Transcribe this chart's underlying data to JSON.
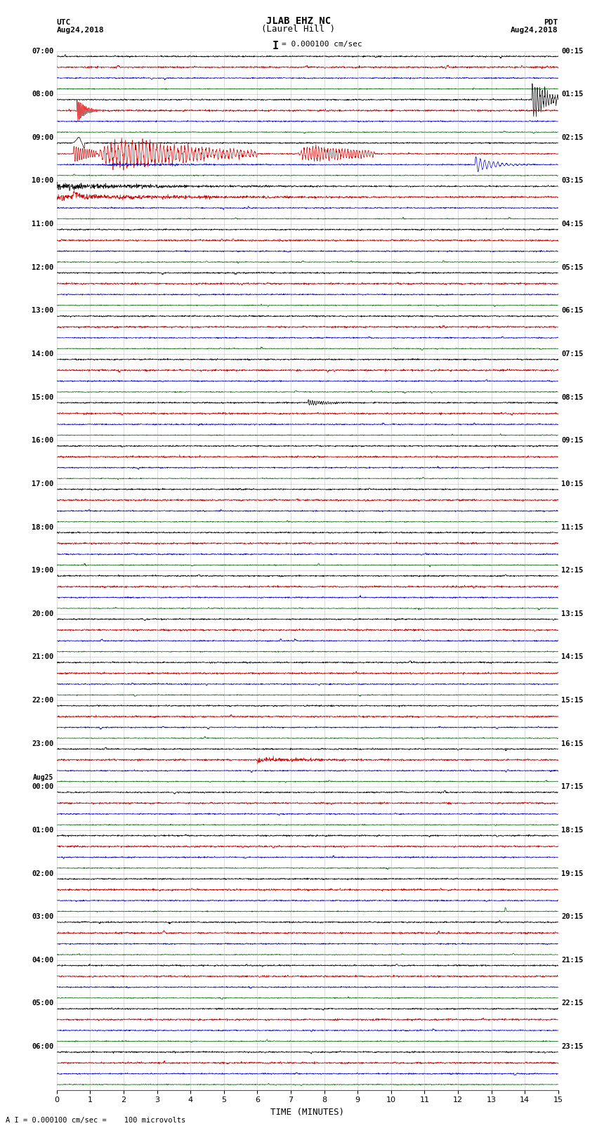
{
  "title_line1": "JLAB EHZ NC",
  "title_line2": "(Laurel Hill )",
  "scale_text": "= 0.000100 cm/sec",
  "scale_bracket": "I",
  "bottom_note": "A I = 0.000100 cm/sec =    100 microvolts",
  "utc_label": "UTC",
  "utc_date": "Aug24,2018",
  "pdt_label": "PDT",
  "pdt_date": "Aug24,2018",
  "aug25_label": "Aug25",
  "xlabel": "TIME (MINUTES)",
  "xlim": [
    0,
    15
  ],
  "xticks": [
    0,
    1,
    2,
    3,
    4,
    5,
    6,
    7,
    8,
    9,
    10,
    11,
    12,
    13,
    14,
    15
  ],
  "bg_color": "#ffffff",
  "trace_colors": [
    "#000000",
    "#cc0000",
    "#0000cc",
    "#006600"
  ],
  "n_hours": 24,
  "noise_seed": 42,
  "grid_color": "#999999"
}
